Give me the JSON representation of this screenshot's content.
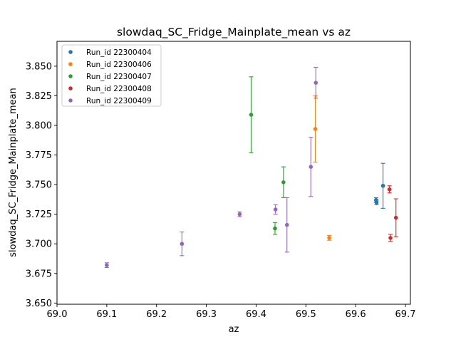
{
  "chart_data": {
    "type": "scatter",
    "title": "slowdaq_SC_Fridge_Mainplate_mean vs az",
    "xlabel": "az",
    "ylabel": "slowdaq_SC_Fridge_Mainplate_mean",
    "xlim": [
      69.0,
      69.71
    ],
    "ylim": [
      3.649,
      3.871
    ],
    "xticks": [
      69.0,
      69.1,
      69.2,
      69.3,
      69.4,
      69.5,
      69.6,
      69.7
    ],
    "xtick_labels": [
      "69.0",
      "69.1",
      "69.2",
      "69.3",
      "69.4",
      "69.5",
      "69.6",
      "69.7"
    ],
    "yticks": [
      3.65,
      3.675,
      3.7,
      3.725,
      3.75,
      3.775,
      3.8,
      3.825,
      3.85
    ],
    "ytick_labels": [
      "3.650",
      "3.675",
      "3.700",
      "3.725",
      "3.750",
      "3.775",
      "3.800",
      "3.825",
      "3.850"
    ],
    "grid": false,
    "legend_position": "top-left",
    "error_bars": true,
    "series": [
      {
        "name": "Run_id 22300404",
        "color": "#1f77b4",
        "points": [
          {
            "x": 69.641,
            "y": 3.737,
            "err": 0.002
          },
          {
            "x": 69.642,
            "y": 3.735,
            "err": 0.002
          },
          {
            "x": 69.655,
            "y": 3.749,
            "err": 0.019
          }
        ]
      },
      {
        "name": "Run_id 22300406",
        "color": "#ff7f0e",
        "points": [
          {
            "x": 69.519,
            "y": 3.797,
            "err": 0.028
          },
          {
            "x": 69.547,
            "y": 3.705,
            "err": 0.002
          }
        ]
      },
      {
        "name": "Run_id 22300407",
        "color": "#2ca02c",
        "points": [
          {
            "x": 69.39,
            "y": 3.809,
            "err": 0.032
          },
          {
            "x": 69.438,
            "y": 3.713,
            "err": 0.005
          },
          {
            "x": 69.455,
            "y": 3.752,
            "err": 0.013
          }
        ]
      },
      {
        "name": "Run_id 22300408",
        "color": "#d62728",
        "points": [
          {
            "x": 69.668,
            "y": 3.746,
            "err": 0.003
          },
          {
            "x": 69.67,
            "y": 3.705,
            "err": 0.003
          },
          {
            "x": 69.681,
            "y": 3.722,
            "err": 0.016
          }
        ]
      },
      {
        "name": "Run_id 22300409",
        "color": "#9467bd",
        "points": [
          {
            "x": 69.1,
            "y": 3.682,
            "err": 0.002
          },
          {
            "x": 69.251,
            "y": 3.7,
            "err": 0.01
          },
          {
            "x": 69.367,
            "y": 3.725,
            "err": 0.002
          },
          {
            "x": 69.439,
            "y": 3.729,
            "err": 0.004
          },
          {
            "x": 69.462,
            "y": 3.716,
            "err": 0.023
          },
          {
            "x": 69.51,
            "y": 3.765,
            "err": 0.025
          },
          {
            "x": 69.52,
            "y": 3.836,
            "err": 0.013
          }
        ]
      }
    ]
  }
}
